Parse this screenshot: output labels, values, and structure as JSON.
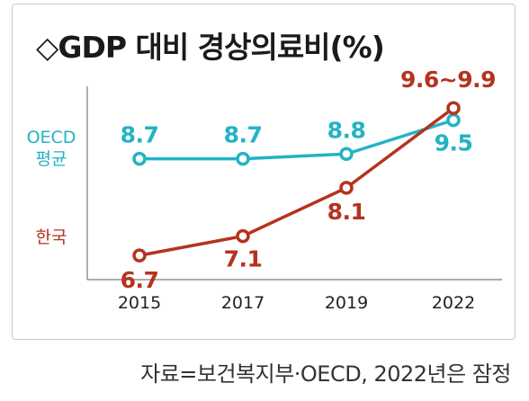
{
  "chart_data": {
    "type": "line",
    "title": "◇GDP 대비 경상의료비(%)",
    "categories": [
      "2015",
      "2017",
      "2019",
      "2022"
    ],
    "series": [
      {
        "name_lines": [
          "OECD",
          "평균"
        ],
        "color": "#23b3c4",
        "values": [
          8.7,
          8.7,
          8.8,
          9.5
        ],
        "labels": [
          "8.7",
          "8.7",
          "8.8",
          "9.5"
        ]
      },
      {
        "name_lines": [
          "한국"
        ],
        "color": "#b5331f",
        "values": [
          6.7,
          7.1,
          8.1,
          9.75
        ],
        "labels": [
          "6.7",
          "7.1",
          "8.1",
          "9.6~9.9"
        ]
      }
    ],
    "ylim": [
      6.2,
      10.2
    ],
    "grid": false
  },
  "source": "자료=보건복지부·OECD, 2022년은 잠정"
}
